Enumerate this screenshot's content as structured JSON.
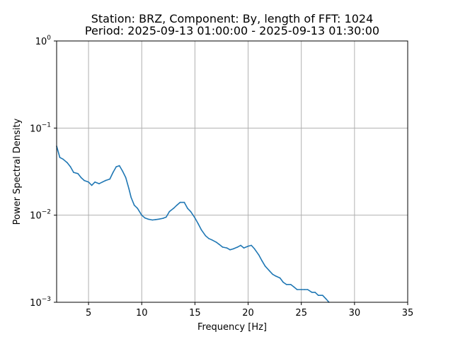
{
  "chart_data": {
    "type": "line",
    "title_line1": "Station: BRZ, Component: By, length of FFT: 1024",
    "title_line2": "Period: 2025-09-13 01:00:00 - 2025-09-13 01:30:00",
    "xlabel": "Frequency [Hz]",
    "ylabel": "Power Spectral Density",
    "xlim": [
      2,
      35
    ],
    "ylim": [
      0.001,
      1
    ],
    "yscale": "log",
    "grid": true,
    "x_ticks": [
      {
        "value": 5,
        "label": "5"
      },
      {
        "value": 10,
        "label": "10"
      },
      {
        "value": 15,
        "label": "15"
      },
      {
        "value": 20,
        "label": "20"
      },
      {
        "value": 25,
        "label": "25"
      },
      {
        "value": 30,
        "label": "30"
      },
      {
        "value": 35,
        "label": "35"
      }
    ],
    "y_ticks": [
      {
        "value": 0.001,
        "base": "10",
        "exp": "−3"
      },
      {
        "value": 0.01,
        "base": "10",
        "exp": "−2"
      },
      {
        "value": 0.1,
        "base": "10",
        "exp": "−1"
      },
      {
        "value": 1,
        "base": "10",
        "exp": "0"
      }
    ],
    "series": [
      {
        "color": "#1f77b4",
        "x": [
          2.0,
          2.3,
          2.6,
          3.0,
          3.3,
          3.6,
          4.0,
          4.3,
          4.6,
          5.0,
          5.3,
          5.6,
          6.0,
          6.3,
          6.6,
          7.0,
          7.3,
          7.6,
          7.9,
          8.2,
          8.5,
          8.8,
          9.0,
          9.3,
          9.6,
          10.0,
          10.3,
          10.6,
          11.0,
          11.3,
          11.6,
          12.0,
          12.3,
          12.6,
          13.0,
          13.3,
          13.6,
          14.0,
          14.3,
          14.6,
          15.0,
          15.3,
          15.6,
          16.0,
          16.3,
          16.6,
          17.0,
          17.3,
          17.6,
          18.0,
          18.3,
          18.6,
          19.0,
          19.3,
          19.6,
          20.0,
          20.3,
          20.6,
          21.0,
          21.3,
          21.6,
          22.0,
          22.3,
          22.6,
          23.0,
          23.3,
          23.6,
          24.0,
          24.3,
          24.6,
          25.0,
          25.3,
          25.6,
          26.0,
          26.3,
          26.6,
          27.0,
          27.3,
          27.6
        ],
        "y": [
          0.062,
          0.046,
          0.044,
          0.04,
          0.036,
          0.031,
          0.03,
          0.027,
          0.025,
          0.024,
          0.022,
          0.024,
          0.023,
          0.024,
          0.025,
          0.026,
          0.031,
          0.036,
          0.037,
          0.032,
          0.027,
          0.02,
          0.016,
          0.013,
          0.012,
          0.01,
          0.0093,
          0.009,
          0.0088,
          0.0089,
          0.009,
          0.0092,
          0.0095,
          0.011,
          0.012,
          0.013,
          0.014,
          0.014,
          0.012,
          0.011,
          0.0093,
          0.008,
          0.0068,
          0.0058,
          0.0054,
          0.0052,
          0.0049,
          0.0046,
          0.0043,
          0.0042,
          0.004,
          0.0041,
          0.0043,
          0.0045,
          0.0042,
          0.0044,
          0.0045,
          0.0041,
          0.0035,
          0.003,
          0.0026,
          0.0023,
          0.0021,
          0.002,
          0.0019,
          0.0017,
          0.0016,
          0.0016,
          0.0015,
          0.0014,
          0.0014,
          0.0014,
          0.0014,
          0.0013,
          0.0013,
          0.0012,
          0.0012,
          0.0011,
          0.001
        ]
      }
    ]
  }
}
